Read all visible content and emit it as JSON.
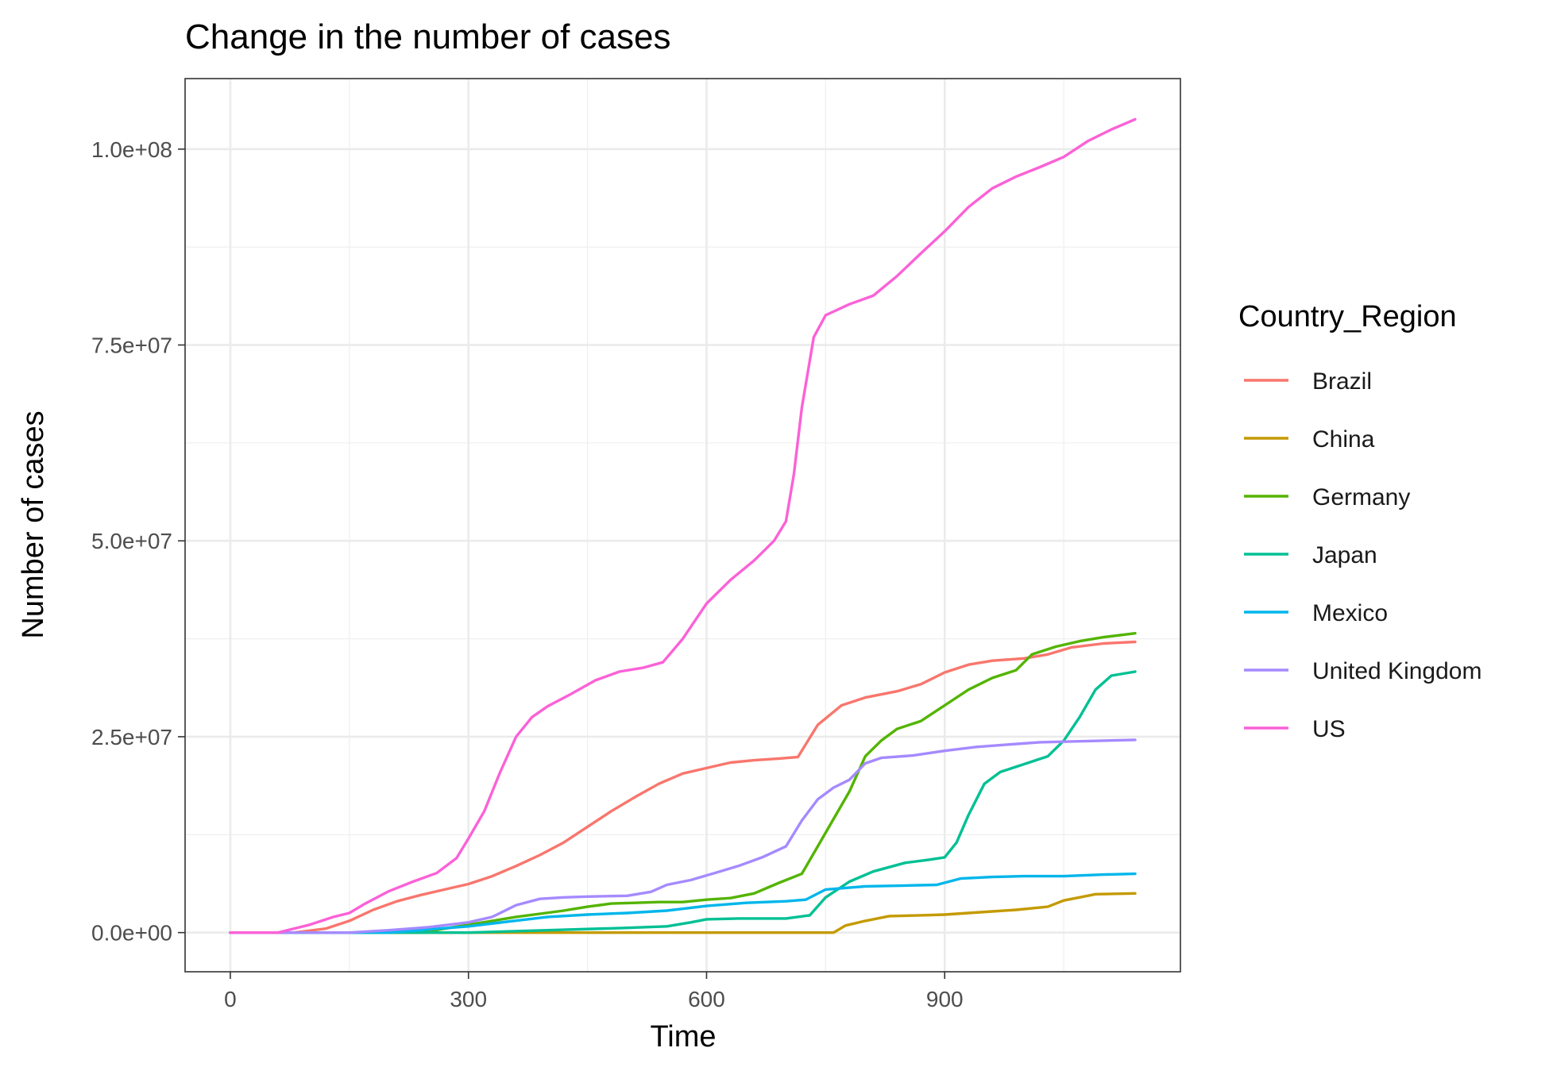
{
  "chart_data": {
    "type": "line",
    "title": "Change in the number of cases",
    "xlabel": "Time",
    "ylabel": "Number of cases",
    "xlim": [
      -57,
      1197
    ],
    "ylim": [
      -5000000,
      109000000
    ],
    "x_ticks": [
      0,
      300,
      600,
      900
    ],
    "x_tick_labels": [
      "0",
      "300",
      "600",
      "900"
    ],
    "y_ticks": [
      0,
      25000000,
      50000000,
      75000000,
      100000000
    ],
    "y_tick_labels": [
      "0.0e+00",
      "2.5e+07",
      "5.0e+07",
      "7.5e+07",
      "1.0e+08"
    ],
    "grid": true,
    "legend": {
      "title": "Country_Region",
      "position": "right"
    },
    "series": [
      {
        "name": "Brazil",
        "color": "#F8766D",
        "points": [
          [
            0,
            0
          ],
          [
            80,
            0
          ],
          [
            120,
            500000
          ],
          [
            150,
            1500000
          ],
          [
            180,
            2900000
          ],
          [
            210,
            4000000
          ],
          [
            240,
            4800000
          ],
          [
            270,
            5500000
          ],
          [
            300,
            6200000
          ],
          [
            330,
            7200000
          ],
          [
            360,
            8500000
          ],
          [
            390,
            9900000
          ],
          [
            420,
            11500000
          ],
          [
            450,
            13500000
          ],
          [
            480,
            15500000
          ],
          [
            510,
            17300000
          ],
          [
            540,
            19000000
          ],
          [
            570,
            20300000
          ],
          [
            600,
            21000000
          ],
          [
            630,
            21700000
          ],
          [
            660,
            22000000
          ],
          [
            690,
            22200000
          ],
          [
            715,
            22400000
          ],
          [
            740,
            26500000
          ],
          [
            770,
            29000000
          ],
          [
            800,
            30000000
          ],
          [
            840,
            30800000
          ],
          [
            870,
            31700000
          ],
          [
            900,
            33200000
          ],
          [
            930,
            34200000
          ],
          [
            960,
            34700000
          ],
          [
            1000,
            35000000
          ],
          [
            1030,
            35500000
          ],
          [
            1060,
            36400000
          ],
          [
            1100,
            36900000
          ],
          [
            1140,
            37100000
          ]
        ]
      },
      {
        "name": "China",
        "color": "#C49A00",
        "points": [
          [
            0,
            0
          ],
          [
            760,
            0
          ],
          [
            775,
            900000
          ],
          [
            800,
            1500000
          ],
          [
            830,
            2100000
          ],
          [
            870,
            2200000
          ],
          [
            900,
            2300000
          ],
          [
            930,
            2500000
          ],
          [
            960,
            2700000
          ],
          [
            990,
            2900000
          ],
          [
            1030,
            3300000
          ],
          [
            1050,
            4100000
          ],
          [
            1070,
            4500000
          ],
          [
            1090,
            4900000
          ],
          [
            1140,
            5000000
          ]
        ]
      },
      {
        "name": "Germany",
        "color": "#53B400",
        "points": [
          [
            0,
            0
          ],
          [
            240,
            0
          ],
          [
            270,
            500000
          ],
          [
            300,
            1000000
          ],
          [
            330,
            1500000
          ],
          [
            360,
            2000000
          ],
          [
            390,
            2400000
          ],
          [
            420,
            2800000
          ],
          [
            450,
            3300000
          ],
          [
            480,
            3700000
          ],
          [
            510,
            3800000
          ],
          [
            540,
            3900000
          ],
          [
            570,
            3900000
          ],
          [
            600,
            4200000
          ],
          [
            630,
            4400000
          ],
          [
            660,
            5000000
          ],
          [
            690,
            6300000
          ],
          [
            720,
            7500000
          ],
          [
            740,
            11000000
          ],
          [
            760,
            14500000
          ],
          [
            780,
            18000000
          ],
          [
            800,
            22500000
          ],
          [
            820,
            24500000
          ],
          [
            840,
            26000000
          ],
          [
            870,
            27000000
          ],
          [
            900,
            29000000
          ],
          [
            930,
            31000000
          ],
          [
            960,
            32500000
          ],
          [
            990,
            33500000
          ],
          [
            1010,
            35500000
          ],
          [
            1040,
            36500000
          ],
          [
            1070,
            37200000
          ],
          [
            1100,
            37700000
          ],
          [
            1140,
            38200000
          ]
        ]
      },
      {
        "name": "Japan",
        "color": "#00C094",
        "points": [
          [
            0,
            0
          ],
          [
            300,
            0
          ],
          [
            400,
            300000
          ],
          [
            500,
            600000
          ],
          [
            550,
            800000
          ],
          [
            580,
            1300000
          ],
          [
            600,
            1700000
          ],
          [
            640,
            1800000
          ],
          [
            700,
            1800000
          ],
          [
            730,
            2200000
          ],
          [
            750,
            4500000
          ],
          [
            780,
            6500000
          ],
          [
            810,
            7800000
          ],
          [
            850,
            8900000
          ],
          [
            880,
            9300000
          ],
          [
            900,
            9600000
          ],
          [
            915,
            11500000
          ],
          [
            930,
            15000000
          ],
          [
            950,
            19000000
          ],
          [
            970,
            20500000
          ],
          [
            1000,
            21500000
          ],
          [
            1030,
            22500000
          ],
          [
            1050,
            24500000
          ],
          [
            1070,
            27500000
          ],
          [
            1090,
            31000000
          ],
          [
            1110,
            32800000
          ],
          [
            1140,
            33300000
          ]
        ]
      },
      {
        "name": "Mexico",
        "color": "#00B6EB",
        "points": [
          [
            0,
            0
          ],
          [
            200,
            0
          ],
          [
            250,
            400000
          ],
          [
            300,
            800000
          ],
          [
            350,
            1400000
          ],
          [
            400,
            2000000
          ],
          [
            450,
            2300000
          ],
          [
            500,
            2500000
          ],
          [
            550,
            2800000
          ],
          [
            600,
            3400000
          ],
          [
            650,
            3800000
          ],
          [
            700,
            4000000
          ],
          [
            725,
            4200000
          ],
          [
            750,
            5500000
          ],
          [
            800,
            5900000
          ],
          [
            850,
            6000000
          ],
          [
            890,
            6100000
          ],
          [
            920,
            6900000
          ],
          [
            960,
            7100000
          ],
          [
            1000,
            7200000
          ],
          [
            1050,
            7200000
          ],
          [
            1100,
            7400000
          ],
          [
            1140,
            7500000
          ]
        ]
      },
      {
        "name": "United Kingdom",
        "color": "#A58AFF",
        "points": [
          [
            0,
            0
          ],
          [
            150,
            0
          ],
          [
            200,
            300000
          ],
          [
            250,
            700000
          ],
          [
            300,
            1300000
          ],
          [
            330,
            2000000
          ],
          [
            360,
            3500000
          ],
          [
            390,
            4300000
          ],
          [
            420,
            4500000
          ],
          [
            450,
            4600000
          ],
          [
            500,
            4700000
          ],
          [
            530,
            5200000
          ],
          [
            550,
            6100000
          ],
          [
            580,
            6700000
          ],
          [
            610,
            7600000
          ],
          [
            640,
            8500000
          ],
          [
            670,
            9600000
          ],
          [
            700,
            11000000
          ],
          [
            720,
            14300000
          ],
          [
            740,
            17000000
          ],
          [
            760,
            18500000
          ],
          [
            780,
            19500000
          ],
          [
            800,
            21600000
          ],
          [
            820,
            22300000
          ],
          [
            860,
            22600000
          ],
          [
            900,
            23200000
          ],
          [
            940,
            23700000
          ],
          [
            980,
            24000000
          ],
          [
            1020,
            24300000
          ],
          [
            1060,
            24400000
          ],
          [
            1100,
            24500000
          ],
          [
            1140,
            24600000
          ]
        ]
      },
      {
        "name": "US",
        "color": "#FB61D7",
        "points": [
          [
            0,
            0
          ],
          [
            60,
            0
          ],
          [
            100,
            1000000
          ],
          [
            130,
            2000000
          ],
          [
            150,
            2500000
          ],
          [
            170,
            3700000
          ],
          [
            200,
            5300000
          ],
          [
            230,
            6500000
          ],
          [
            260,
            7600000
          ],
          [
            285,
            9500000
          ],
          [
            300,
            12000000
          ],
          [
            320,
            15500000
          ],
          [
            340,
            20500000
          ],
          [
            360,
            25000000
          ],
          [
            380,
            27500000
          ],
          [
            400,
            28900000
          ],
          [
            430,
            30500000
          ],
          [
            460,
            32200000
          ],
          [
            490,
            33300000
          ],
          [
            520,
            33800000
          ],
          [
            545,
            34500000
          ],
          [
            570,
            37500000
          ],
          [
            600,
            42000000
          ],
          [
            630,
            45000000
          ],
          [
            660,
            47500000
          ],
          [
            685,
            50000000
          ],
          [
            700,
            52500000
          ],
          [
            710,
            58500000
          ],
          [
            720,
            67000000
          ],
          [
            735,
            76000000
          ],
          [
            750,
            78800000
          ],
          [
            780,
            80200000
          ],
          [
            810,
            81300000
          ],
          [
            840,
            83800000
          ],
          [
            870,
            86700000
          ],
          [
            900,
            89500000
          ],
          [
            930,
            92600000
          ],
          [
            960,
            95000000
          ],
          [
            990,
            96500000
          ],
          [
            1020,
            97700000
          ],
          [
            1050,
            99000000
          ],
          [
            1080,
            101000000
          ],
          [
            1110,
            102500000
          ],
          [
            1140,
            103800000
          ]
        ]
      }
    ]
  }
}
